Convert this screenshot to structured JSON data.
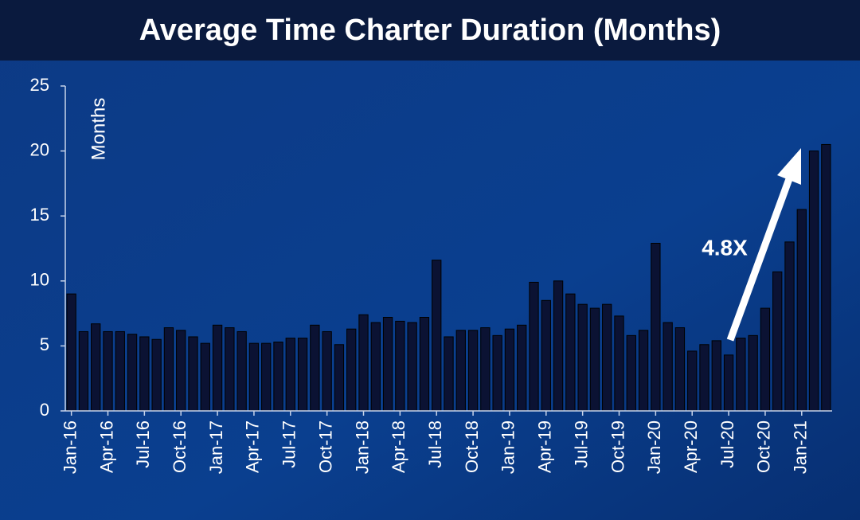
{
  "chart_data": {
    "type": "bar",
    "title": "Average Time Charter Duration (Months)",
    "y_label": "Months",
    "annotation": "4.8X",
    "color": "#0b1233",
    "categories": [
      "Jan-16",
      null,
      null,
      "Apr-16",
      null,
      null,
      "Jul-16",
      null,
      null,
      "Oct-16",
      null,
      null,
      "Jan-17",
      null,
      null,
      "Apr-17",
      null,
      null,
      "Jul-17",
      null,
      null,
      "Oct-17",
      null,
      null,
      "Jan-18",
      null,
      null,
      "Apr-18",
      null,
      null,
      "Jul-18",
      null,
      null,
      "Oct-18",
      null,
      null,
      "Jan-19",
      null,
      null,
      "Apr-19",
      null,
      null,
      "Jul-19",
      null,
      null,
      "Oct-19",
      null,
      null,
      "Jan-20",
      null,
      null,
      "Apr-20",
      null,
      null,
      "Jul-20",
      null,
      null,
      "Oct-20",
      null,
      null,
      "Jan-21",
      null,
      null
    ],
    "values": [
      9.0,
      6.1,
      6.7,
      6.1,
      6.1,
      5.9,
      5.7,
      5.5,
      6.4,
      6.2,
      5.7,
      5.2,
      6.6,
      6.4,
      6.1,
      5.2,
      5.2,
      5.3,
      5.6,
      5.6,
      6.6,
      6.1,
      5.1,
      6.3,
      7.4,
      6.8,
      7.2,
      6.9,
      6.8,
      7.2,
      11.6,
      5.7,
      6.2,
      6.2,
      6.4,
      5.8,
      6.3,
      6.6,
      9.9,
      8.5,
      10.0,
      9.0,
      8.2,
      7.9,
      8.2,
      7.3,
      5.8,
      6.2,
      12.9,
      6.8,
      6.4,
      4.6,
      5.1,
      5.4,
      4.3,
      5.6,
      5.8,
      7.9,
      10.7,
      13.0,
      15.5,
      20.0,
      20.5
    ],
    "ylim": [
      0,
      25
    ],
    "yticks": [
      0,
      5,
      10,
      15,
      20,
      25
    ]
  }
}
